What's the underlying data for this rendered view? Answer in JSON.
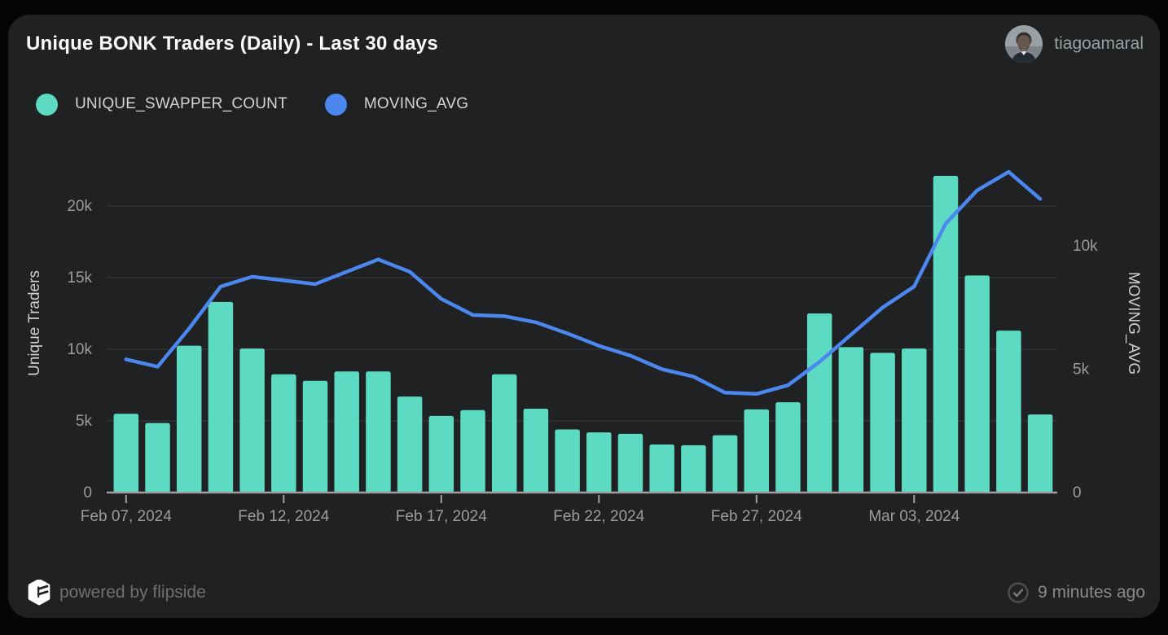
{
  "header": {
    "title": "Unique BONK Traders (Daily) - Last 30 days",
    "username": "tiagoamaral"
  },
  "legend": [
    {
      "label": "UNIQUE_SWAPPER_COUNT",
      "color": "#5CDBC2"
    },
    {
      "label": "MOVING_AVG",
      "color": "#4C87EF"
    }
  ],
  "footer": {
    "powered_by": "powered by flipside",
    "updated": "9 minutes ago"
  },
  "colors": {
    "card_bg": "#1F2123",
    "page_bg": "#050506",
    "grid": "#3A3B3D",
    "axis_line": "#A0A0A3",
    "tick_label": "#9C9C9C",
    "axis_title": "#CFCFCF"
  },
  "chart_data": {
    "type": "bar",
    "subtype": "bar-with-line-overlay",
    "categories": [
      "Feb 07, 2024",
      "Feb 08, 2024",
      "Feb 09, 2024",
      "Feb 10, 2024",
      "Feb 11, 2024",
      "Feb 12, 2024",
      "Feb 13, 2024",
      "Feb 14, 2024",
      "Feb 15, 2024",
      "Feb 16, 2024",
      "Feb 17, 2024",
      "Feb 18, 2024",
      "Feb 19, 2024",
      "Feb 20, 2024",
      "Feb 21, 2024",
      "Feb 22, 2024",
      "Feb 23, 2024",
      "Feb 24, 2024",
      "Feb 25, 2024",
      "Feb 26, 2024",
      "Feb 27, 2024",
      "Feb 28, 2024",
      "Feb 29, 2024",
      "Mar 01, 2024",
      "Mar 02, 2024",
      "Mar 03, 2024",
      "Mar 04, 2024",
      "Mar 05, 2024",
      "Mar 06, 2024",
      "Mar 07, 2024"
    ],
    "series": [
      {
        "name": "UNIQUE_SWAPPER_COUNT",
        "type": "bar",
        "axis": "left",
        "color": "#5CDBC2",
        "values": [
          5500,
          4850,
          10250,
          13300,
          10050,
          8250,
          7800,
          8450,
          8450,
          6700,
          5350,
          5750,
          8250,
          5850,
          4400,
          4200,
          4100,
          3350,
          3300,
          4000,
          5800,
          6300,
          12500,
          10150,
          9750,
          10050,
          22100,
          15150,
          11300,
          5450
        ]
      },
      {
        "name": "MOVING_AVG",
        "type": "line",
        "axis": "right",
        "color": "#4C87EF",
        "values": [
          5400,
          5100,
          6650,
          8350,
          8750,
          8600,
          8450,
          8950,
          9450,
          8950,
          7850,
          7200,
          7150,
          6900,
          6450,
          5950,
          5550,
          5000,
          4700,
          4050,
          4000,
          4350,
          5300,
          6400,
          7500,
          8350,
          10900,
          12250,
          13000,
          11900
        ]
      }
    ],
    "left_axis": {
      "title": "Unique Traders",
      "ticks": [
        0,
        5000,
        10000,
        15000,
        20000
      ],
      "max": 23300
    },
    "right_axis": {
      "title": "MOVING_AVG",
      "ticks": [
        0,
        5000,
        10000
      ],
      "max": 13530
    },
    "x_tick_indices": [
      0,
      5,
      10,
      15,
      20,
      25
    ],
    "x_tick_labels": [
      "Feb 07, 2024",
      "Feb 12, 2024",
      "Feb 17, 2024",
      "Feb 22, 2024",
      "Feb 27, 2024",
      "Mar 03, 2024"
    ],
    "grid": true,
    "legend_position": "top"
  }
}
